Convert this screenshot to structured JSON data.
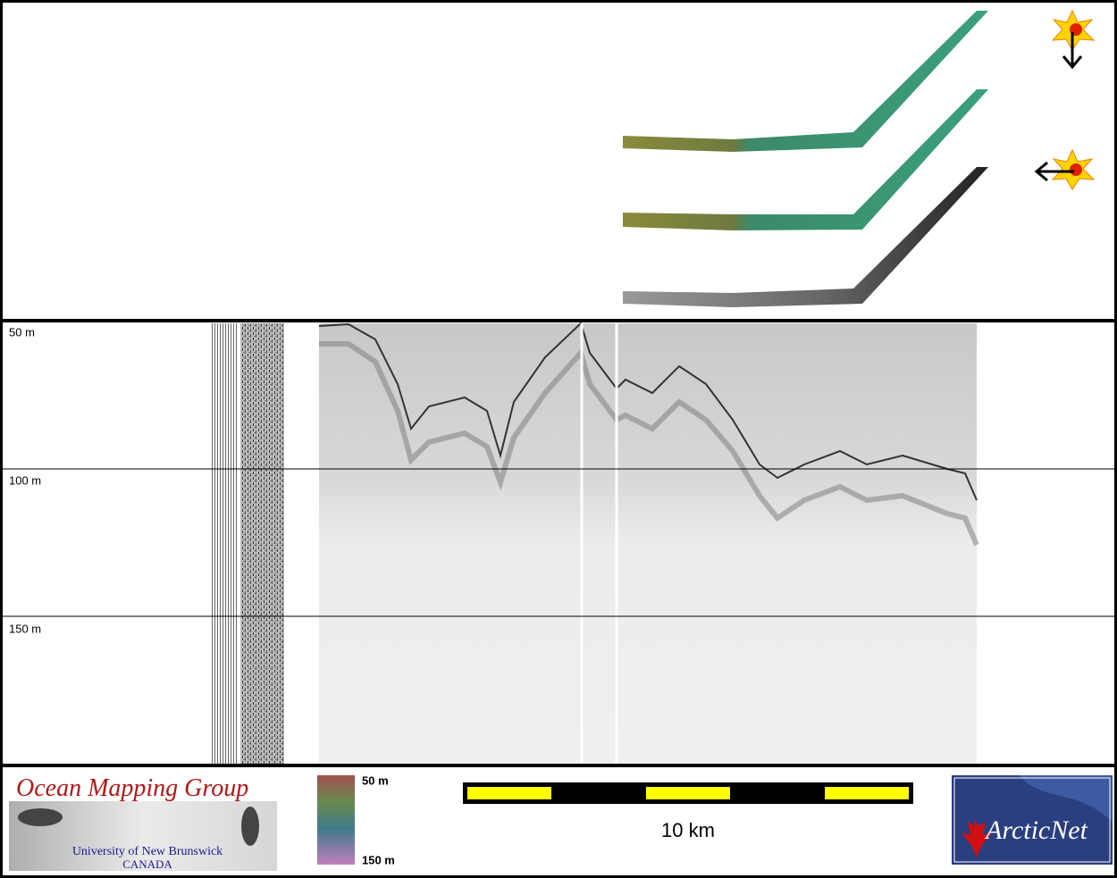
{
  "profile": {
    "depth_labels": [
      "50 m",
      "100 m",
      "150 m"
    ]
  },
  "logos": {
    "omg_title": "Ocean Mapping Group",
    "omg_university": "University of New Brunswick",
    "omg_country": "CANADA",
    "arcticnet": "ArcticNet"
  },
  "color_scale": {
    "top_label": "50 m",
    "bottom_label": "150 m"
  },
  "scale_bar": {
    "label": "10 km"
  }
}
